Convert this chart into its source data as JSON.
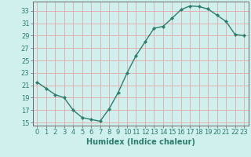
{
  "x": [
    0,
    1,
    2,
    3,
    4,
    5,
    6,
    7,
    8,
    9,
    10,
    11,
    12,
    13,
    14,
    15,
    16,
    17,
    18,
    19,
    20,
    21,
    22,
    23
  ],
  "y": [
    21.5,
    20.5,
    19.5,
    19.0,
    17.0,
    15.8,
    15.5,
    15.2,
    17.2,
    19.8,
    23.0,
    25.8,
    28.0,
    30.2,
    30.5,
    31.8,
    33.2,
    33.8,
    33.7,
    33.3,
    32.3,
    31.3,
    29.2,
    29.0
  ],
  "line_color": "#2d7d6f",
  "marker": "D",
  "marker_size": 2.2,
  "bg_color": "#cff0ec",
  "grid_color": "#e8a8a8",
  "xlabel": "Humidex (Indice chaleur)",
  "xlim": [
    -0.5,
    23.5
  ],
  "ylim": [
    14.5,
    34.5
  ],
  "yticks": [
    15,
    17,
    19,
    21,
    23,
    25,
    27,
    29,
    31,
    33
  ],
  "xticks": [
    0,
    1,
    2,
    3,
    4,
    5,
    6,
    7,
    8,
    9,
    10,
    11,
    12,
    13,
    14,
    15,
    16,
    17,
    18,
    19,
    20,
    21,
    22,
    23
  ],
  "xlabel_fontsize": 7,
  "tick_fontsize": 6,
  "line_width": 1.0
}
